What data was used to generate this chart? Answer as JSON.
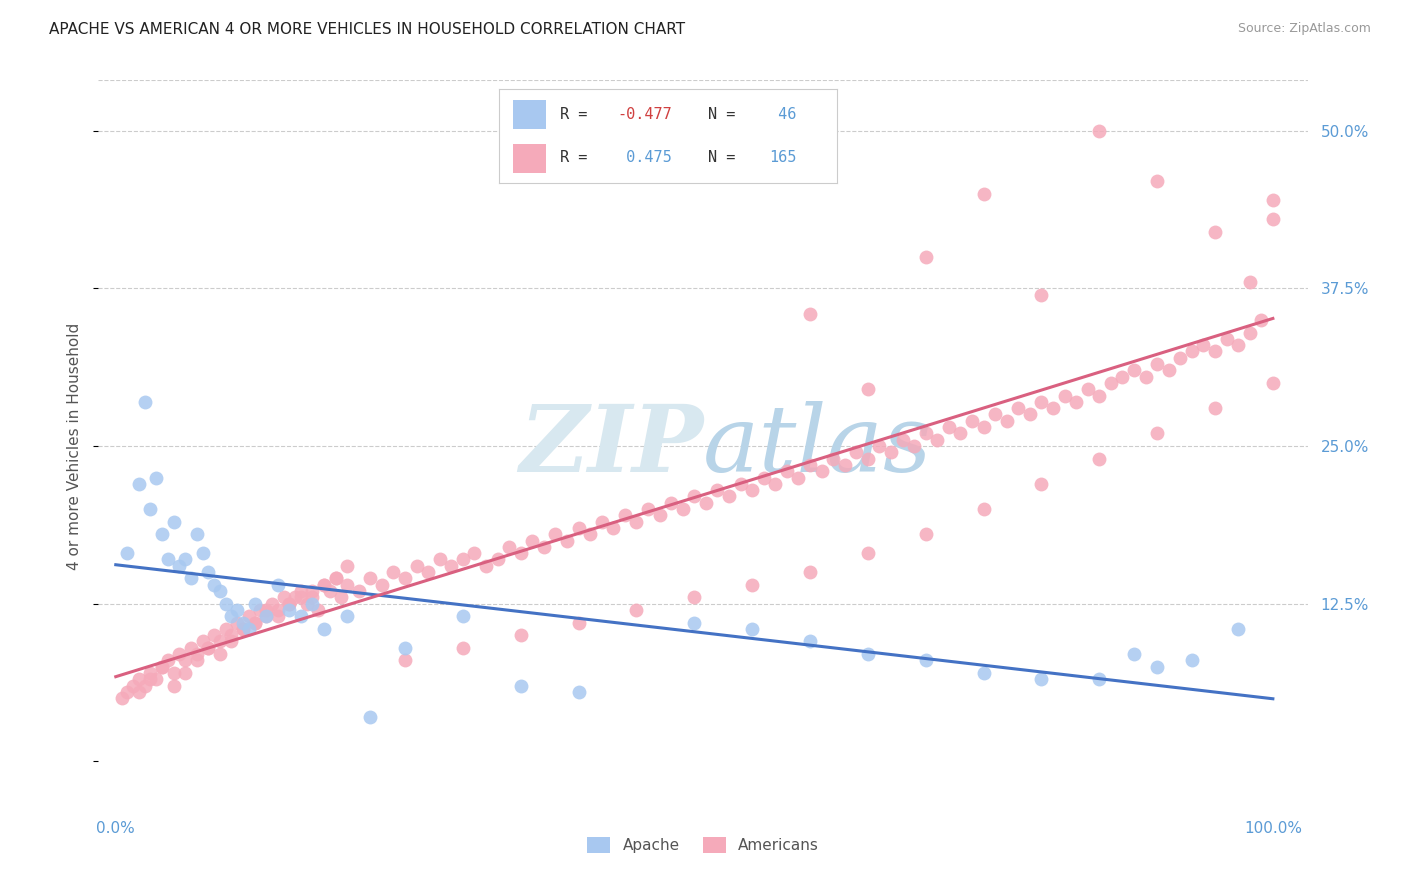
{
  "title": "APACHE VS AMERICAN 4 OR MORE VEHICLES IN HOUSEHOLD CORRELATION CHART",
  "source": "Source: ZipAtlas.com",
  "ylabel_label": "4 or more Vehicles in Household",
  "legend_label1": "Apache",
  "legend_label2": "Americans",
  "R1": -0.477,
  "N1": 46,
  "R2": 0.475,
  "N2": 165,
  "blue_color": "#A8C8F0",
  "pink_color": "#F5AABA",
  "blue_line_color": "#4472C4",
  "pink_line_color": "#D96080",
  "watermark_color": "#D8E8F0",
  "background_color": "#FFFFFF",
  "tick_color": "#5B9BD5",
  "grid_color": "#CCCCCC",
  "apache_x": [
    1.0,
    2.0,
    2.5,
    3.0,
    3.5,
    4.0,
    4.5,
    5.0,
    5.5,
    6.0,
    6.5,
    7.0,
    7.5,
    8.0,
    8.5,
    9.0,
    9.5,
    10.0,
    10.5,
    11.0,
    11.5,
    12.0,
    13.0,
    14.0,
    15.0,
    16.0,
    17.0,
    18.0,
    20.0,
    22.0,
    25.0,
    30.0,
    35.0,
    40.0,
    50.0,
    55.0,
    60.0,
    65.0,
    70.0,
    75.0,
    80.0,
    85.0,
    88.0,
    90.0,
    93.0,
    97.0
  ],
  "apache_y": [
    16.5,
    22.0,
    28.5,
    20.0,
    22.5,
    18.0,
    16.0,
    19.0,
    15.5,
    16.0,
    14.5,
    18.0,
    16.5,
    15.0,
    14.0,
    13.5,
    12.5,
    11.5,
    12.0,
    11.0,
    10.5,
    12.5,
    11.5,
    14.0,
    12.0,
    11.5,
    12.5,
    10.5,
    11.5,
    3.5,
    9.0,
    11.5,
    6.0,
    5.5,
    11.0,
    10.5,
    9.5,
    8.5,
    8.0,
    7.0,
    6.5,
    6.5,
    8.5,
    7.5,
    8.0,
    10.5
  ],
  "american_x": [
    0.5,
    1.0,
    1.5,
    2.0,
    2.5,
    3.0,
    3.5,
    4.0,
    4.5,
    5.0,
    5.5,
    6.0,
    6.5,
    7.0,
    7.5,
    8.0,
    8.5,
    9.0,
    9.5,
    10.0,
    10.5,
    11.0,
    11.5,
    12.0,
    12.5,
    13.0,
    13.5,
    14.0,
    14.5,
    15.0,
    15.5,
    16.0,
    16.5,
    17.0,
    17.5,
    18.0,
    18.5,
    19.0,
    19.5,
    20.0,
    21.0,
    22.0,
    23.0,
    24.0,
    25.0,
    26.0,
    27.0,
    28.0,
    29.0,
    30.0,
    31.0,
    32.0,
    33.0,
    34.0,
    35.0,
    36.0,
    37.0,
    38.0,
    39.0,
    40.0,
    41.0,
    42.0,
    43.0,
    44.0,
    45.0,
    46.0,
    47.0,
    48.0,
    49.0,
    50.0,
    51.0,
    52.0,
    53.0,
    54.0,
    55.0,
    56.0,
    57.0,
    58.0,
    59.0,
    60.0,
    61.0,
    62.0,
    63.0,
    64.0,
    65.0,
    66.0,
    67.0,
    68.0,
    69.0,
    70.0,
    71.0,
    72.0,
    73.0,
    74.0,
    75.0,
    76.0,
    77.0,
    78.0,
    79.0,
    80.0,
    81.0,
    82.0,
    83.0,
    84.0,
    85.0,
    86.0,
    87.0,
    88.0,
    89.0,
    90.0,
    91.0,
    92.0,
    93.0,
    94.0,
    95.0,
    96.0,
    97.0,
    98.0,
    99.0,
    100.0,
    2.0,
    3.0,
    4.0,
    5.0,
    6.0,
    7.0,
    8.0,
    9.0,
    10.0,
    11.0,
    12.0,
    13.0,
    14.0,
    15.0,
    16.0,
    17.0,
    18.0,
    19.0,
    20.0,
    25.0,
    30.0,
    35.0,
    40.0,
    45.0,
    50.0,
    55.0,
    60.0,
    65.0,
    70.0,
    75.0,
    80.0,
    85.0,
    90.0,
    95.0,
    100.0,
    70.0,
    75.0,
    80.0,
    85.0,
    90.0,
    95.0,
    98.0,
    100.0,
    60.0,
    65.0
  ],
  "american_y": [
    5.0,
    5.5,
    6.0,
    6.5,
    6.0,
    7.0,
    6.5,
    7.5,
    8.0,
    7.0,
    8.5,
    8.0,
    9.0,
    8.5,
    9.5,
    9.0,
    10.0,
    9.5,
    10.5,
    10.0,
    11.0,
    10.5,
    11.5,
    11.0,
    12.0,
    11.5,
    12.5,
    12.0,
    13.0,
    12.5,
    13.0,
    13.5,
    12.5,
    13.0,
    12.0,
    14.0,
    13.5,
    14.5,
    13.0,
    14.0,
    13.5,
    14.5,
    14.0,
    15.0,
    14.5,
    15.5,
    15.0,
    16.0,
    15.5,
    16.0,
    16.5,
    15.5,
    16.0,
    17.0,
    16.5,
    17.5,
    17.0,
    18.0,
    17.5,
    18.5,
    18.0,
    19.0,
    18.5,
    19.5,
    19.0,
    20.0,
    19.5,
    20.5,
    20.0,
    21.0,
    20.5,
    21.5,
    21.0,
    22.0,
    21.5,
    22.5,
    22.0,
    23.0,
    22.5,
    23.5,
    23.0,
    24.0,
    23.5,
    24.5,
    24.0,
    25.0,
    24.5,
    25.5,
    25.0,
    26.0,
    25.5,
    26.5,
    26.0,
    27.0,
    26.5,
    27.5,
    27.0,
    28.0,
    27.5,
    28.5,
    28.0,
    29.0,
    28.5,
    29.5,
    29.0,
    30.0,
    30.5,
    31.0,
    30.5,
    31.5,
    31.0,
    32.0,
    32.5,
    33.0,
    32.5,
    33.5,
    33.0,
    34.0,
    35.0,
    43.0,
    5.5,
    6.5,
    7.5,
    6.0,
    7.0,
    8.0,
    9.0,
    8.5,
    9.5,
    10.5,
    11.0,
    12.0,
    11.5,
    12.5,
    13.0,
    13.5,
    14.0,
    14.5,
    15.5,
    8.0,
    9.0,
    10.0,
    11.0,
    12.0,
    13.0,
    14.0,
    15.0,
    16.5,
    18.0,
    20.0,
    22.0,
    24.0,
    26.0,
    28.0,
    30.0,
    40.0,
    45.0,
    37.0,
    50.0,
    46.0,
    42.0,
    38.0,
    44.5,
    35.5,
    29.5
  ]
}
